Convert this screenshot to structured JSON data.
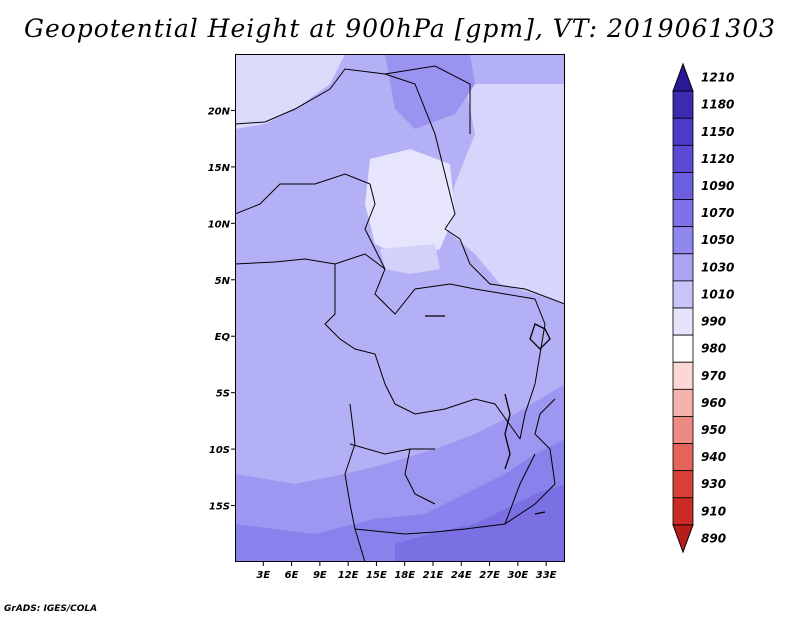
{
  "title": "Geopotential Height at 900hPa [gpm], VT: 2019061303",
  "credit": "GrADS: IGES/COLA",
  "map": {
    "lat_labels": [
      "20N",
      "15N",
      "10N",
      "5N",
      "EQ",
      "5S",
      "10S",
      "15S"
    ],
    "lat_values": [
      20,
      15,
      10,
      5,
      0,
      -5,
      -10,
      -15
    ],
    "lon_labels": [
      "3E",
      "6E",
      "9E",
      "12E",
      "15E",
      "18E",
      "21E",
      "24E",
      "27E",
      "30E",
      "33E"
    ],
    "lon_values": [
      3,
      6,
      9,
      12,
      15,
      18,
      21,
      24,
      27,
      30,
      33
    ],
    "lat_range": [
      -20,
      25
    ],
    "lon_range": [
      0,
      35
    ]
  },
  "colorbar": {
    "levels": [
      "1210",
      "1180",
      "1150",
      "1120",
      "1090",
      "1070",
      "1050",
      "1030",
      "1010",
      "990",
      "980",
      "970",
      "960",
      "950",
      "940",
      "930",
      "910",
      "890"
    ],
    "colors": [
      "#2a1a96",
      "#3a2bb0",
      "#4a3bc8",
      "#5a4bd6",
      "#6b5fe0",
      "#7d72e8",
      "#9088ee",
      "#a9a4f3",
      "#c7c4f8",
      "#e6e4fc",
      "#ffffff",
      "#fbd8d6",
      "#f5b1ad",
      "#ee8a84",
      "#e4635b",
      "#d84038",
      "#c92b24",
      "#b51d19"
    ]
  }
}
